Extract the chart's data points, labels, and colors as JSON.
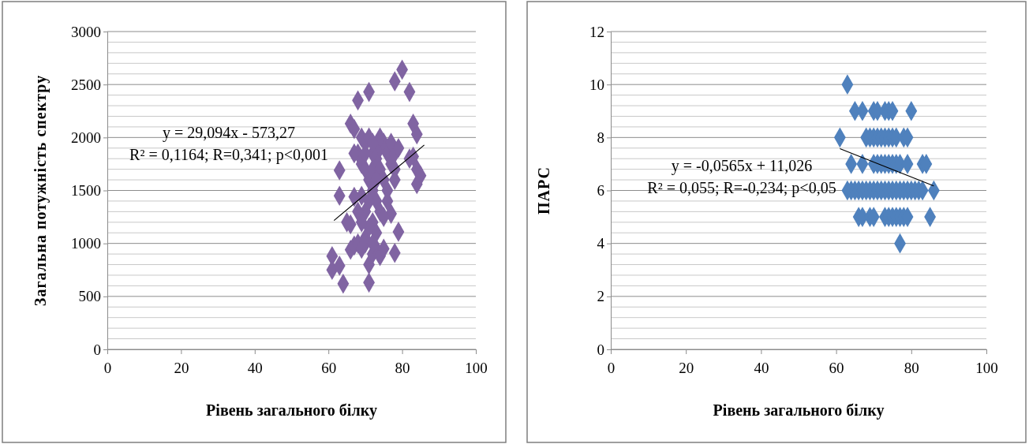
{
  "chart_data": [
    {
      "type": "scatter",
      "xlabel": "Рівень загального білку",
      "ylabel": "Загальна потужність  спектру",
      "xlim": [
        0,
        100
      ],
      "xticks": [
        0,
        20,
        40,
        60,
        80,
        100
      ],
      "ylim": [
        0,
        3000
      ],
      "yticks": [
        0,
        {
          "value": 100,
          "label": null
        },
        {
          "value": 200,
          "label": null
        },
        {
          "value": 300,
          "label": null
        },
        {
          "value": 400,
          "label": null
        },
        500,
        {
          "value": 600,
          "label": null
        },
        {
          "value": 700,
          "label": null
        },
        {
          "value": 800,
          "label": null
        },
        {
          "value": 900,
          "label": null
        },
        1000,
        {
          "value": 1100,
          "label": null
        },
        {
          "value": 1200,
          "label": null
        },
        {
          "value": 1300,
          "label": null
        },
        {
          "value": 1400,
          "label": null
        },
        1500,
        {
          "value": 1600,
          "label": null
        },
        {
          "value": 1700,
          "label": null
        },
        {
          "value": 1800,
          "label": null
        },
        {
          "value": 1900,
          "label": null
        },
        2000,
        {
          "value": 2100,
          "label": null
        },
        {
          "value": 2200,
          "label": null
        },
        {
          "value": 2300,
          "label": null
        },
        {
          "value": 2400,
          "label": null
        },
        2500,
        {
          "value": 2600,
          "label": null
        },
        {
          "value": 2700,
          "label": null
        },
        {
          "value": 2800,
          "label": null
        },
        {
          "value": 2900,
          "label": null
        },
        3000
      ],
      "grid": "y",
      "marker": "diamond",
      "series": [
        {
          "color": "#8064a2",
          "x": [
            61,
            61,
            63,
            64,
            65,
            66,
            63,
            63,
            66,
            67,
            68,
            69,
            70,
            71,
            71,
            72,
            73,
            74,
            75,
            77,
            78,
            79,
            66,
            67,
            68,
            71,
            69,
            70,
            68,
            69,
            70,
            71,
            72,
            73,
            74,
            70,
            71,
            69,
            67,
            72,
            73,
            71,
            72,
            73,
            74,
            75,
            76,
            74,
            75,
            76,
            73,
            72,
            70,
            74,
            77,
            77,
            78,
            76,
            75,
            78,
            80,
            78,
            82,
            83,
            84,
            83,
            84,
            85,
            84,
            82,
            78,
            79,
            71,
            72,
            68,
            69,
            70,
            72,
            67
          ],
          "values": [
            880,
            750,
            790,
            620,
            1200,
            1180,
            1450,
            1690,
            940,
            980,
            1000,
            950,
            1050,
            630,
            800,
            900,
            950,
            880,
            950,
            1280,
            910,
            1110,
            2130,
            2080,
            2350,
            2430,
            2000,
            1950,
            1850,
            1750,
            1700,
            1600,
            1500,
            1400,
            1300,
            1300,
            1400,
            1450,
            1440,
            1200,
            1100,
            1150,
            1700,
            1800,
            1900,
            1950,
            1850,
            1700,
            1600,
            1500,
            1600,
            1850,
            1850,
            2000,
            1950,
            1750,
            1600,
            1400,
            1250,
            1850,
            2640,
            2530,
            2430,
            2130,
            2030,
            1820,
            1700,
            1640,
            1560,
            1800,
            1700,
            1900,
            2000,
            1950,
            1300,
            1200,
            1000,
            1000,
            1850
          ]
        },
        {
          "type": "line",
          "color": "#000000",
          "marker": "none",
          "line_style": "solid",
          "x": [
            61.5,
            86
          ],
          "values": [
            1216,
            1929
          ]
        }
      ],
      "annotations": [
        "y = 29,094x - 573,27",
        "R² = 0,1164; R=0,341; p<0,001"
      ]
    },
    {
      "type": "scatter",
      "xlabel": "Рівень загального білку",
      "ylabel": "ПАРС",
      "xlim": [
        0,
        100
      ],
      "xticks": [
        0,
        20,
        40,
        60,
        80,
        100
      ],
      "ylim": [
        0,
        12
      ],
      "yticks": [
        0,
        {
          "value": 0.4,
          "label": null
        },
        {
          "value": 0.8,
          "label": null
        },
        {
          "value": 1.2,
          "label": null
        },
        {
          "value": 1.6,
          "label": null
        },
        2,
        {
          "value": 2.4,
          "label": null
        },
        {
          "value": 2.8,
          "label": null
        },
        {
          "value": 3.2,
          "label": null
        },
        {
          "value": 3.6,
          "label": null
        },
        4,
        {
          "value": 4.4,
          "label": null
        },
        {
          "value": 4.8,
          "label": null
        },
        {
          "value": 5.2,
          "label": null
        },
        {
          "value": 5.6,
          "label": null
        },
        6,
        {
          "value": 6.4,
          "label": null
        },
        {
          "value": 6.8,
          "label": null
        },
        {
          "value": 7.2,
          "label": null
        },
        {
          "value": 7.6,
          "label": null
        },
        8,
        {
          "value": 8.4,
          "label": null
        },
        {
          "value": 8.8,
          "label": null
        },
        {
          "value": 9.2,
          "label": null
        },
        {
          "value": 9.6,
          "label": null
        },
        10,
        {
          "value": 10.4,
          "label": null
        },
        {
          "value": 10.8,
          "label": null
        },
        {
          "value": 11.2,
          "label": null
        },
        {
          "value": 11.6,
          "label": null
        },
        12
      ],
      "grid": "y",
      "marker": "diamond",
      "series": [
        {
          "color": "#4f81bd",
          "x": [
            63,
            65,
            67,
            70,
            71,
            73,
            74,
            75,
            80,
            61,
            68,
            69,
            70,
            71,
            72,
            73,
            74,
            75,
            76,
            78,
            79,
            64,
            67,
            70,
            71,
            72,
            73,
            74,
            75,
            76,
            77,
            79,
            83,
            84,
            63,
            64,
            65,
            66,
            67,
            68,
            69,
            70,
            71,
            72,
            73,
            74,
            75,
            76,
            77,
            78,
            79,
            80,
            81,
            82,
            83,
            86,
            66,
            67,
            69,
            70,
            73,
            74,
            75,
            76,
            77,
            78,
            79,
            85,
            77
          ],
          "values": [
            10,
            9,
            9,
            9,
            9,
            9,
            9,
            9,
            9,
            8,
            8,
            8,
            8,
            8,
            8,
            8,
            8,
            8,
            8,
            8,
            8,
            7,
            7,
            7,
            7,
            7,
            7,
            7,
            7,
            7,
            7,
            7,
            7,
            7,
            6,
            6,
            6,
            6,
            6,
            6,
            6,
            6,
            6,
            6,
            6,
            6,
            6,
            6,
            6,
            6,
            6,
            6,
            6,
            6,
            6,
            6,
            5,
            5,
            5,
            5,
            5,
            5,
            5,
            5,
            5,
            5,
            5,
            5,
            4
          ]
        },
        {
          "type": "line",
          "color": "#000000",
          "marker": "none",
          "line_style": "solid",
          "x": [
            61,
            86
          ],
          "values": [
            7.58,
            6.17
          ]
        }
      ],
      "annotations": [
        "y = -0,0565x + 11,026",
        "R² = 0,055; R=-0,234; p<0,05"
      ]
    }
  ]
}
